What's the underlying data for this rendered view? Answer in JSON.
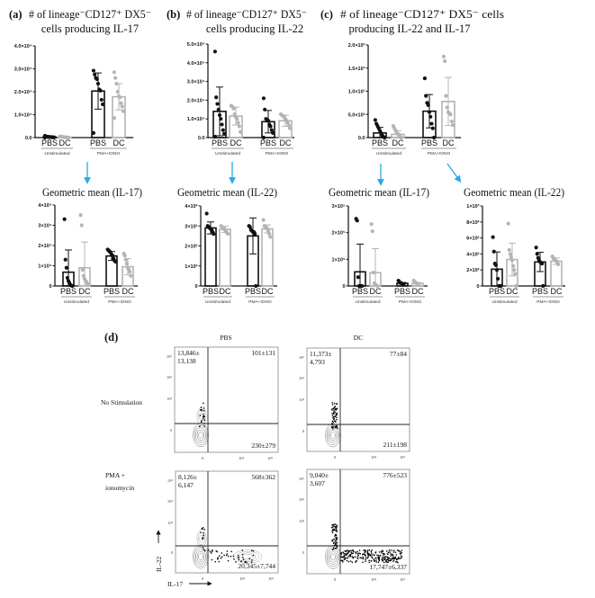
{
  "panel_labels": {
    "a": "(a)",
    "b": "(b)",
    "c": "(c)",
    "d": "(d)"
  },
  "titles": {
    "a": [
      "# of lineage⁻CD127⁺ DX5⁻",
      "cells producing IL-17"
    ],
    "b": [
      "# of lineage⁻CD127⁺ DX5⁻",
      "cells producing IL-22"
    ],
    "c": [
      "# of lineage⁻CD127⁺ DX5⁻ cells",
      "producing IL-22 and IL-17"
    ],
    "a_geo": "Geometric mean (IL-17)",
    "b_geo": "Geometric mean (IL-22)",
    "c_geo17": "Geometric mean (IL-17)",
    "c_geo22": "Geometric mean (IL-22)"
  },
  "colors": {
    "pbs": "#111111",
    "dc": "#b4b4b4",
    "arrow": "#29a9e8"
  },
  "chart_data": [
    {
      "id": "a",
      "type": "bar",
      "ylim": [
        0,
        40000
      ],
      "yticks": [
        "0.0",
        "1.0×10⁴",
        "2.0×10⁴",
        "3.0×10⁴",
        "4.0×10⁴"
      ],
      "categories": [
        "PBS",
        "DC",
        "PBS",
        "DC"
      ],
      "groups": [
        "Unstimulated",
        "PMA+IONO"
      ],
      "bars": [
        {
          "mean": 300,
          "sd": 250,
          "points": [
            800,
            500,
            400,
            300,
            300,
            200,
            200,
            100,
            100,
            0
          ]
        },
        {
          "mean": 200,
          "sd": 150,
          "points": [
            500,
            400,
            300,
            200,
            200,
            100,
            100,
            0
          ]
        },
        {
          "mean": 20300,
          "sd": 7900,
          "points": [
            29200,
            27500,
            26000,
            25500,
            23500,
            21000,
            20500,
            16500,
            14500,
            2000
          ]
        },
        {
          "mean": 17800,
          "sd": 5700,
          "points": [
            28500,
            26000,
            23500,
            20000,
            18000,
            17500,
            15000,
            13500,
            11500,
            8500
          ]
        }
      ]
    },
    {
      "id": "b",
      "type": "bar",
      "ylim": [
        0,
        50000
      ],
      "yticks": [
        "0.0",
        "1.0×10⁴",
        "2.0×10⁴",
        "3.0×10⁴",
        "4.0×10⁴",
        "5.0×10⁴"
      ],
      "categories": [
        "PBS",
        "DC",
        "PBS",
        "DC"
      ],
      "groups": [
        "Unstimulated",
        "PMA+IONO"
      ],
      "bars": [
        {
          "mean": 14000,
          "sd": 13000,
          "points": [
            46000,
            21500,
            18000,
            15000,
            12000,
            10000,
            7000,
            4000,
            2000,
            500
          ]
        },
        {
          "mean": 11500,
          "sd": 4800,
          "points": [
            17000,
            16500,
            15500,
            12500,
            11000,
            10000,
            8000,
            6000,
            3000
          ]
        },
        {
          "mean": 8500,
          "sd": 6000,
          "points": [
            21000,
            15000,
            10000,
            9500,
            9000,
            7000,
            6000,
            4000,
            2500,
            0
          ]
        },
        {
          "mean": 9000,
          "sd": 3000,
          "points": [
            12500,
            12000,
            11500,
            11000,
            10000,
            9000,
            8000,
            6500,
            5000
          ]
        }
      ]
    },
    {
      "id": "c",
      "type": "bar",
      "ylim": [
        0,
        2000
      ],
      "yticks": [
        "0.0",
        "5.0×10²",
        "1.0×10³",
        "1.5×10³",
        "2.0×10³"
      ],
      "categories": [
        "PBS",
        "DC",
        "PBS",
        "DC"
      ],
      "groups": [
        "Unstimulated",
        "PMA+IONO"
      ],
      "bars": [
        {
          "mean": 100,
          "sd": 120,
          "points": [
            380,
            300,
            250,
            200,
            150,
            100,
            50,
            20,
            0
          ]
        },
        {
          "mean": 70,
          "sd": 80,
          "points": [
            250,
            200,
            150,
            100,
            80,
            50,
            30,
            0
          ]
        },
        {
          "mean": 570,
          "sd": 360,
          "points": [
            1280,
            900,
            750,
            700,
            550,
            450,
            300,
            200,
            0
          ]
        },
        {
          "mean": 780,
          "sd": 520,
          "points": [
            1750,
            1650,
            900,
            650,
            550,
            520,
            500,
            350,
            270
          ]
        }
      ]
    },
    {
      "id": "a_geo",
      "type": "bar",
      "ylim": [
        0,
        40000
      ],
      "yticks": [
        "0",
        "1×10⁴",
        "2×10⁴",
        "3×10⁴",
        "4×10⁴"
      ],
      "categories": [
        "PBS",
        "DC",
        "PBS",
        "DC"
      ],
      "groups": [
        "Unstimulated",
        "PMA+IONO"
      ],
      "bars": [
        {
          "mean": 6800,
          "sd": 11000,
          "points": [
            33000,
            13000,
            9000,
            4000,
            2500,
            1500,
            500,
            200,
            0
          ]
        },
        {
          "mean": 9000,
          "sd": 12700,
          "points": [
            35000,
            30000,
            8000,
            5000,
            3500,
            2500,
            2000,
            1000,
            500
          ]
        },
        {
          "mean": 14800,
          "sd": 2200,
          "points": [
            18000,
            17500,
            17000,
            16500,
            15500,
            15000,
            13500,
            12500,
            12000
          ]
        },
        {
          "mean": 9500,
          "sd": 4000,
          "points": [
            16000,
            15000,
            13000,
            11000,
            9000,
            8000,
            7000,
            5000
          ]
        }
      ]
    },
    {
      "id": "b_geo",
      "type": "bar",
      "ylim": [
        0,
        400
      ],
      "yticks": [
        "0",
        "1×10²",
        "2×10²",
        "3×10²",
        "4×10²"
      ],
      "categories": [
        "PBS",
        "DC",
        "PBS",
        "DC"
      ],
      "groups": [
        "Unstimulated",
        "PMA+IONO"
      ],
      "bars": [
        {
          "mean": 290,
          "sd": 30,
          "points": [
            362,
            300,
            295,
            290,
            285,
            280,
            270,
            260
          ]
        },
        {
          "mean": 283,
          "sd": 15,
          "points": [
            300,
            295,
            290,
            285,
            280,
            275,
            265,
            260
          ]
        },
        {
          "mean": 250,
          "sd": 90,
          "points": [
            300,
            295,
            280,
            275,
            270,
            270,
            260,
            0
          ]
        },
        {
          "mean": 285,
          "sd": 20,
          "points": [
            330,
            300,
            295,
            290,
            285,
            275,
            260,
            245
          ]
        }
      ]
    },
    {
      "id": "c_geo17",
      "type": "bar",
      "ylim": [
        0,
        300000
      ],
      "yticks": [
        "0",
        "1×10⁵",
        "2×10⁵",
        "3×10⁵"
      ],
      "categories": [
        "PBS",
        "DC",
        "PBS",
        "DC"
      ],
      "groups": [
        "Unstimulated",
        "PMA+IONO"
      ],
      "bars": [
        {
          "mean": 53000,
          "sd": 104000,
          "points": [
            252000,
            245000,
            33000,
            0,
            0,
            0,
            0
          ]
        },
        {
          "mean": 50000,
          "sd": 90000,
          "points": [
            232000,
            205000,
            50000,
            10000,
            5000,
            2000,
            0
          ]
        },
        {
          "mean": 10000,
          "sd": 3000,
          "points": [
            20000,
            15000,
            12000,
            10000,
            8000,
            6000
          ]
        },
        {
          "mean": 10000,
          "sd": 3000,
          "points": [
            20000,
            15000,
            12000,
            10000,
            7000
          ]
        }
      ]
    },
    {
      "id": "c_geo22",
      "type": "bar",
      "ylim": [
        0,
        1000
      ],
      "yticks": [
        "0",
        "2×10²",
        "4×10²",
        "6×10²",
        "8×10²",
        "1×10³"
      ],
      "categories": [
        "PBS",
        "DC",
        "PBS",
        "DC"
      ],
      "groups": [
        "Unstimulated",
        "PMA+IONO"
      ],
      "bars": [
        {
          "mean": 210,
          "sd": 215,
          "points": [
            610,
            430,
            280,
            260,
            200,
            90,
            0,
            0,
            0
          ]
        },
        {
          "mean": 330,
          "sd": 205,
          "points": [
            780,
            450,
            400,
            360,
            320,
            250,
            200,
            150,
            0
          ]
        },
        {
          "mean": 300,
          "sd": 120,
          "points": [
            480,
            400,
            350,
            320,
            300,
            290,
            280,
            0
          ]
        },
        {
          "mean": 310,
          "sd": 40,
          "points": [
            370,
            350,
            330,
            320,
            310,
            290,
            270
          ]
        }
      ]
    }
  ],
  "flow": {
    "columns": [
      "PBS",
      "DC"
    ],
    "rows": [
      [
        "No Stimulation"
      ],
      [
        "PMA +",
        "ionomycin"
      ]
    ],
    "y_axis_label": "IL-22",
    "x_axis_label": "IL-17",
    "y_ticks": [
      "10⁵",
      "10⁴",
      "10³",
      "0"
    ],
    "x_ticks": [
      "0",
      "10⁴",
      "10⁵"
    ],
    "plots": [
      {
        "ul": [
          "13,846±",
          "13,138"
        ],
        "ur": "101±131",
        "lr": "230±279"
      },
      {
        "ul": [
          "11,373±",
          "4,793"
        ],
        "ur": "77±84",
        "lr": "211±198"
      },
      {
        "ul": [
          "8,126±",
          "6,147"
        ],
        "ur": "568±362",
        "lr": "20,345±7,744"
      },
      {
        "ul": [
          "9,040±",
          "3,607"
        ],
        "ur": "776±523",
        "lr": "17,747±6,337"
      }
    ]
  }
}
